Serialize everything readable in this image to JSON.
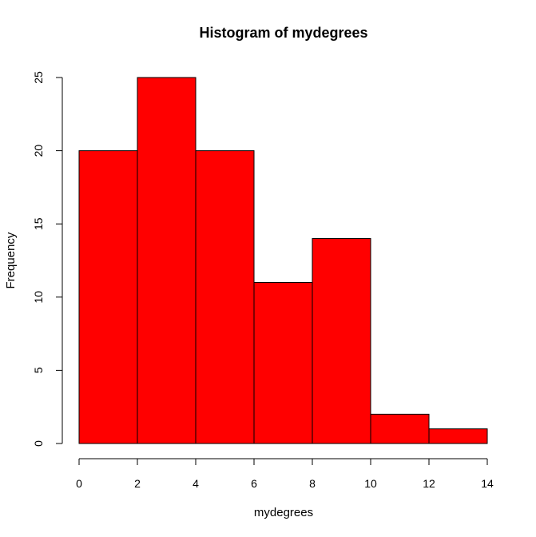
{
  "chart_data": {
    "type": "bar",
    "title": "Histogram of mydegrees",
    "xlabel": "mydegrees",
    "ylabel": "Frequency",
    "bins": [
      {
        "start": 0,
        "end": 2,
        "value": 20
      },
      {
        "start": 2,
        "end": 4,
        "value": 25
      },
      {
        "start": 4,
        "end": 6,
        "value": 20
      },
      {
        "start": 6,
        "end": 8,
        "value": 11
      },
      {
        "start": 8,
        "end": 10,
        "value": 14
      },
      {
        "start": 10,
        "end": 12,
        "value": 2
      },
      {
        "start": 12,
        "end": 14,
        "value": 1
      }
    ],
    "xlim": [
      0,
      14
    ],
    "ylim": [
      0,
      25
    ],
    "xticks": [
      0,
      2,
      4,
      6,
      8,
      10,
      12,
      14
    ],
    "yticks": [
      0,
      5,
      10,
      15,
      20,
      25
    ],
    "bar_color": "#ff0000",
    "grid": false,
    "legend": "none"
  }
}
